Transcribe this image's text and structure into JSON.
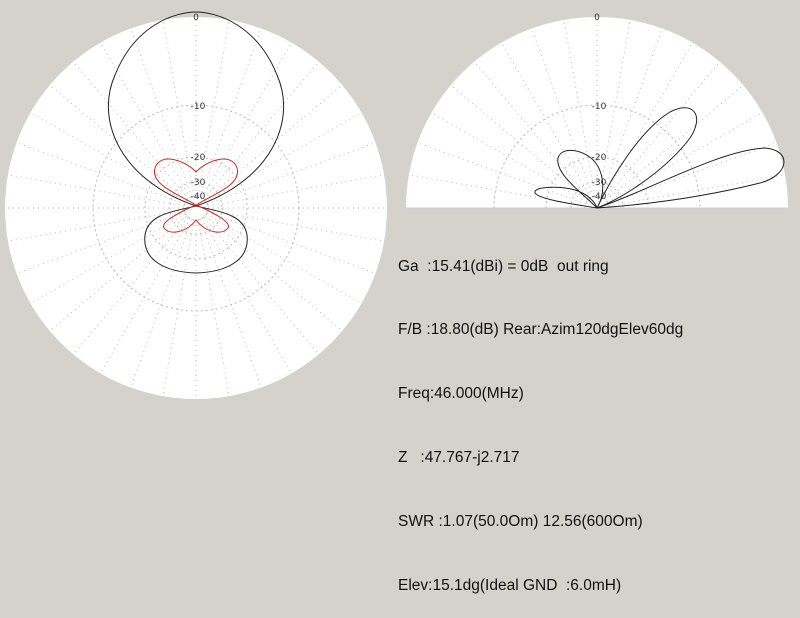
{
  "colors": {
    "background": "#d5d2cc",
    "plot_face": "#ffffff",
    "grid": "#b8b8b8",
    "pattern_main": "#222222",
    "pattern_secondary": "#e02020"
  },
  "azimuth_plot": {
    "ring_labels": [
      "0",
      "-10",
      "-20",
      "-30",
      "-40"
    ]
  },
  "elevation_plot": {
    "ring_labels": [
      "0",
      "-10",
      "-20",
      "-30",
      "-40"
    ]
  },
  "info": {
    "gain": "Ga  :15.41(dBi) = 0dB  out ring",
    "front_back": "F/B :18.80(dB) Rear:Azim120dgElev60dg",
    "frequency": "Freq:46.000(MHz)",
    "impedance": "Z   :47.767-j2.717",
    "swr": "SWR :1.07(50.0Om) 12.56(600Om)",
    "elevation": "Elev:15.1dg(Ideal GND  :6.0mH)"
  }
}
